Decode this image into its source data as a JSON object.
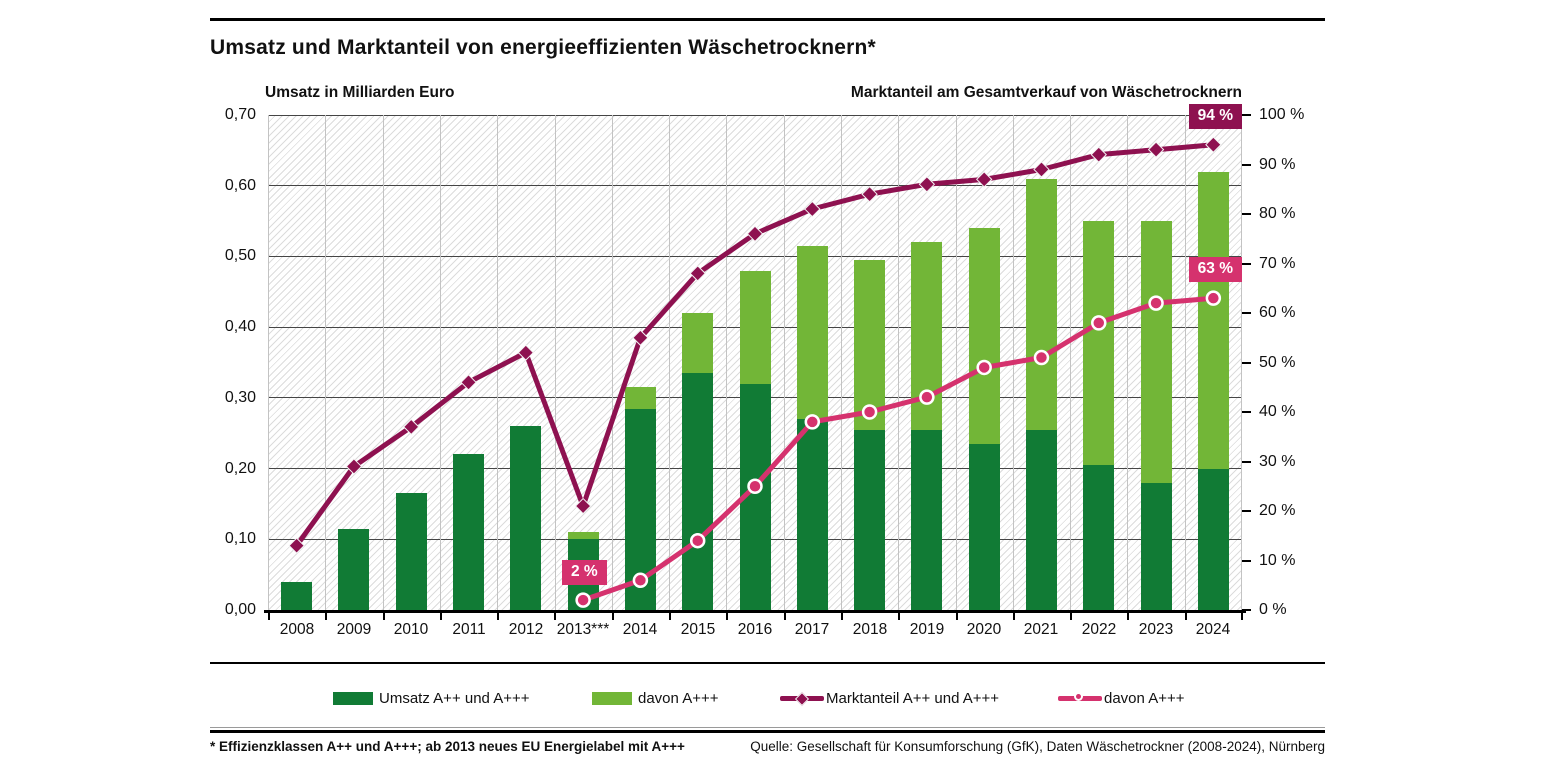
{
  "page": {
    "title": "Umsatz und Marktanteil von energieeffizienten Wäschetrocknern*",
    "axis_title_left": "Umsatz in Milliarden Euro",
    "axis_title_right": "Marktanteil am Gesamtverkauf von Wäschetrocknern",
    "footnote": "* Effizienzklassen A++ und A+++; ab 2013 neues EU Energielabel mit A+++",
    "source": "Quelle: Gesellschaft für Konsumforschung (GfK), Daten Wäschetrockner (2008-2024), Nürnberg"
  },
  "colors": {
    "dark_green": "#117b35",
    "light_green": "#72b637",
    "maroon": "#8e1150",
    "pink": "#d5326e",
    "grid_dark": "#454545",
    "grid_light": "#c3c3c3"
  },
  "legend": [
    {
      "type": "swatch",
      "color": "dark_green",
      "label": "Umsatz  A++ und A+++"
    },
    {
      "type": "swatch",
      "color": "light_green",
      "label": "davon A+++"
    },
    {
      "type": "line-diamond",
      "color": "maroon",
      "label": "Marktanteil  A++ und A+++"
    },
    {
      "type": "line-dot",
      "color": "pink",
      "label": "davon A+++"
    }
  ],
  "chart_data": {
    "type": "combo: stacked bar (left axis) + lines (right axis)",
    "categories": [
      "2008",
      "2009",
      "2010",
      "2011",
      "2012",
      "2013***",
      "2014",
      "2015",
      "2016",
      "2017",
      "2018",
      "2019",
      "2020",
      "2021",
      "2022",
      "2023",
      "2024"
    ],
    "series": [
      {
        "name": "Umsatz A++ und A+++ (gesamt, Milliarden Euro, Gesamthöhe des Balkens, dunkelgrün)",
        "type": "bar",
        "axis": "left",
        "values": [
          0.04,
          0.115,
          0.165,
          0.22,
          0.26,
          0.11,
          0.315,
          0.42,
          0.48,
          0.515,
          0.495,
          0.52,
          0.54,
          0.61,
          0.55,
          0.55,
          0.62
        ]
      },
      {
        "name": "davon A+++ (Milliarden Euro, oberes hellgrünes Segment)",
        "type": "bar-segment",
        "axis": "left",
        "values": [
          0,
          0,
          0,
          0,
          0,
          0.01,
          0.03,
          0.085,
          0.16,
          0.245,
          0.24,
          0.265,
          0.305,
          0.355,
          0.345,
          0.37,
          0.42
        ]
      },
      {
        "name": "Marktanteil A++ und A+++ (%)",
        "type": "line",
        "axis": "right",
        "marker": "diamond",
        "values": [
          13,
          29,
          37,
          46,
          52,
          21,
          55,
          68,
          76,
          81,
          84,
          86,
          87,
          89,
          92,
          93,
          94
        ]
      },
      {
        "name": "davon A+++ (%)",
        "type": "line",
        "axis": "right",
        "marker": "circle",
        "values": [
          null,
          null,
          null,
          null,
          null,
          2,
          6,
          14,
          25,
          38,
          40,
          43,
          49,
          51,
          58,
          62,
          63
        ]
      }
    ],
    "left_axis": {
      "range": [
        0,
        0.7
      ],
      "ticks": [
        "0,70",
        "0,60",
        "0,50",
        "0,40",
        "0,30",
        "0,20",
        "0,10",
        "0,00"
      ],
      "grid": true
    },
    "right_axis": {
      "range": [
        0,
        100
      ],
      "ticks": [
        "100 %",
        "90 %",
        "80 %",
        "70 %",
        "60 %",
        "50 %",
        "40 %",
        "30 %",
        "20 %",
        "10 %",
        "0 %"
      ]
    },
    "legend_position": "bottom",
    "annotations": [
      {
        "text": "94 %",
        "style": "maroon",
        "series": 2,
        "index": 16
      },
      {
        "text": "63 %",
        "style": "pink",
        "series": 3,
        "index": 16
      },
      {
        "text": "2 %",
        "style": "pink",
        "series": 3,
        "index": 5
      }
    ]
  }
}
